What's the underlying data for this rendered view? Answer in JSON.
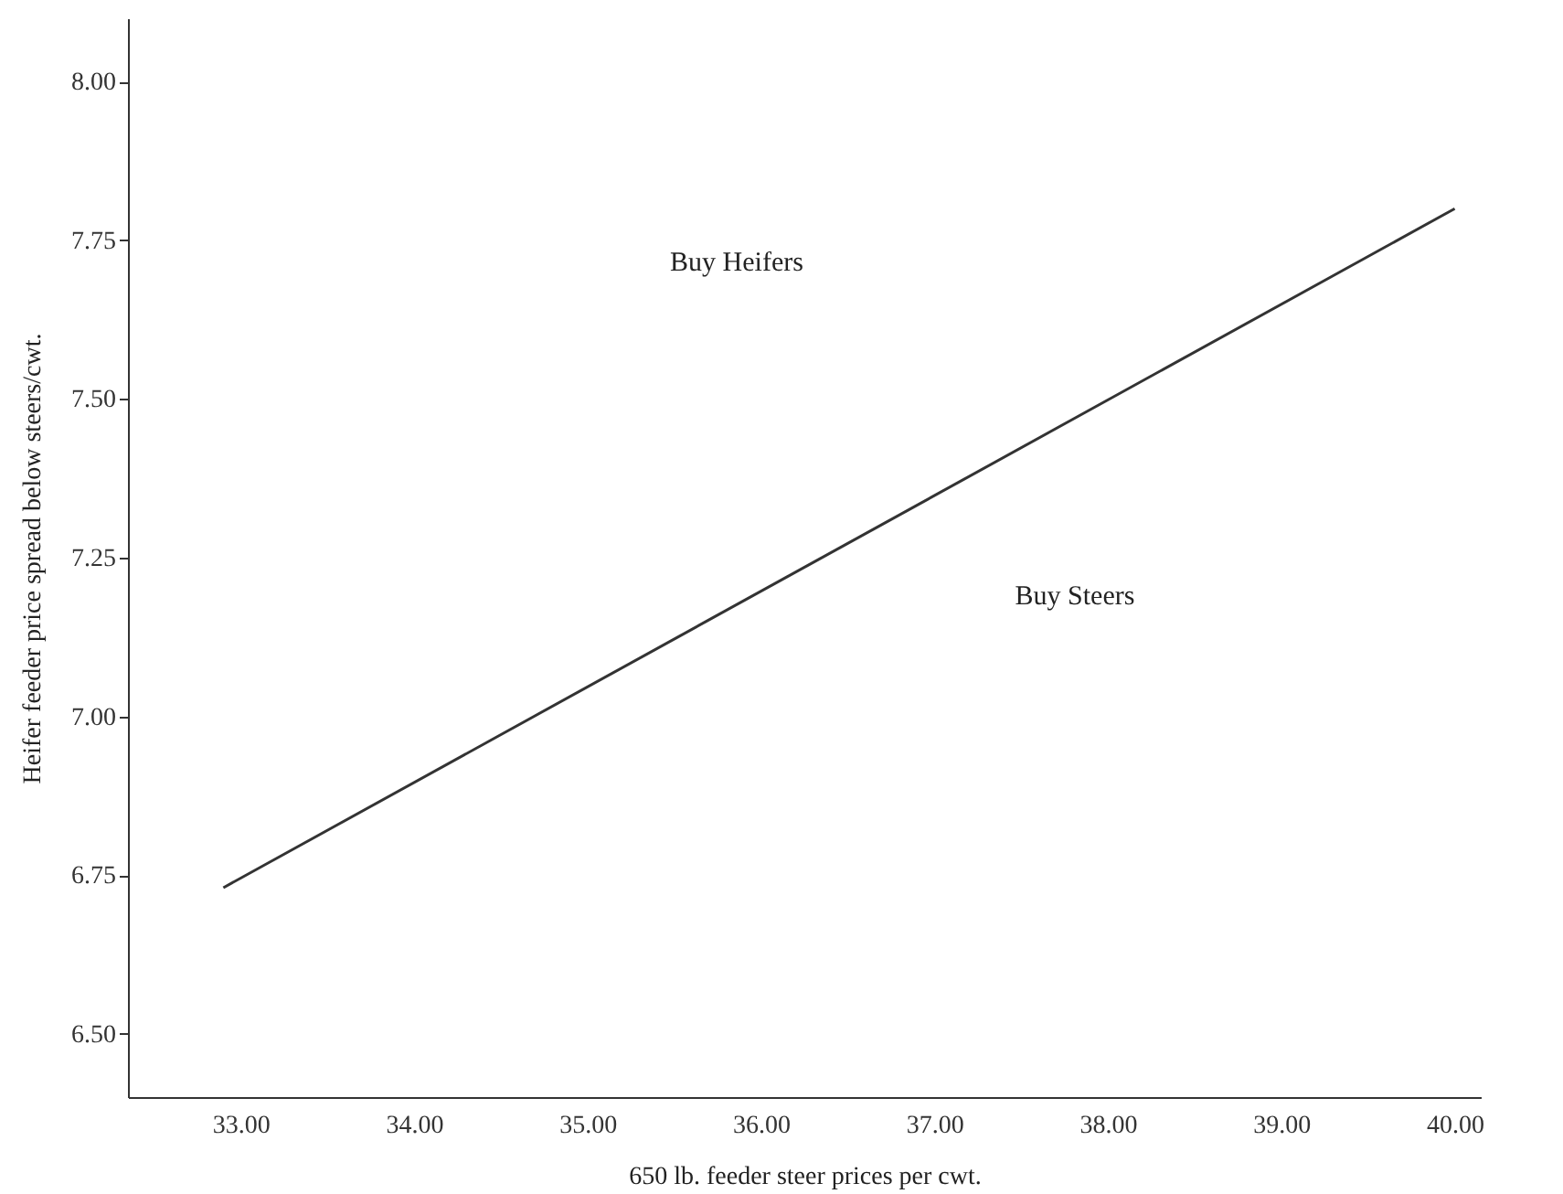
{
  "chart_data": {
    "type": "line",
    "xlabel": "650 lb. feeder steer prices per cwt.",
    "ylabel": "Heifer feeder price spread below steers/cwt.",
    "x": [
      32.9,
      40
    ],
    "series": [
      {
        "color": "#333333",
        "values": [
          6.73,
          7.8
        ]
      }
    ],
    "xlim": [
      32.35,
      40.15
    ],
    "ylim": [
      6.4,
      8.1
    ],
    "xticks": [
      {
        "value": 33,
        "label": "33.00"
      },
      {
        "value": 34,
        "label": "34.00"
      },
      {
        "value": 35,
        "label": "35.00"
      },
      {
        "value": 36,
        "label": "36.00"
      },
      {
        "value": 37,
        "label": "37.00"
      },
      {
        "value": 38,
        "label": "38.00"
      },
      {
        "value": 39,
        "label": "39.00"
      },
      {
        "value": 40,
        "label": "40.00"
      }
    ],
    "yticks": [
      {
        "value": 6.5,
        "label": "6.50"
      },
      {
        "value": 6.75,
        "label": "6.75"
      },
      {
        "value": 7,
        "label": "7.00"
      },
      {
        "value": 7.25,
        "label": "7.25"
      },
      {
        "value": 7.5,
        "label": "7.50"
      },
      {
        "value": 7.75,
        "label": "7.75"
      },
      {
        "value": 8,
        "label": "8.00"
      }
    ],
    "annotations": [
      "Buy Heifers",
      "Buy Steers"
    ],
    "grid": false,
    "marker": "none",
    "line_style": "solid"
  }
}
